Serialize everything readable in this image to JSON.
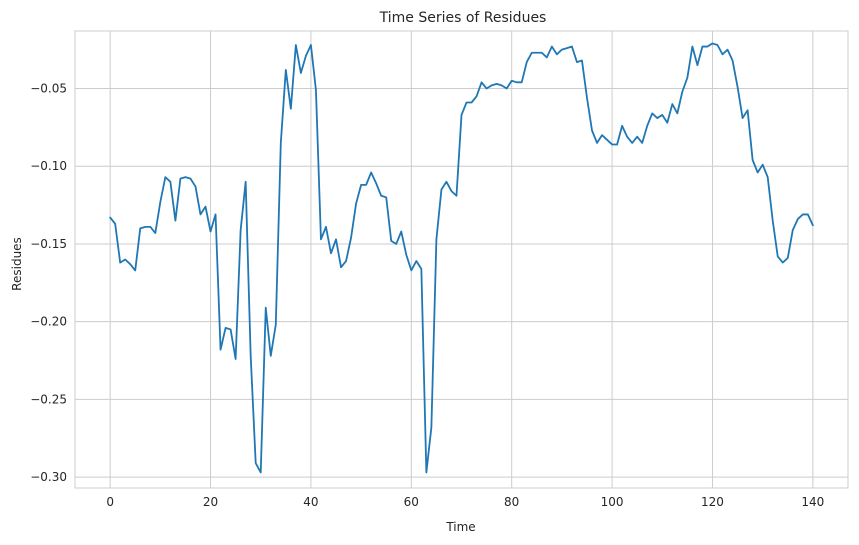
{
  "chart_data": {
    "type": "line",
    "title": "Time Series of Residues",
    "xlabel": "Time",
    "ylabel": "Residues",
    "xlim": [
      -7,
      147
    ],
    "ylim": [
      -0.307,
      -0.013
    ],
    "xticks": [
      0,
      20,
      40,
      60,
      80,
      100,
      120,
      140
    ],
    "yticks": [
      -0.3,
      -0.25,
      -0.2,
      -0.15,
      -0.1,
      -0.05
    ],
    "xtick_labels": [
      "0",
      "20",
      "40",
      "60",
      "80",
      "100",
      "120",
      "140"
    ],
    "ytick_labels": [
      "−0.30",
      "−0.25",
      "−0.20",
      "−0.15",
      "−0.10",
      "−0.05"
    ],
    "grid": true,
    "colors": {
      "line": "#1f77b4",
      "grid": "#cccccc",
      "background": "#ffffff"
    },
    "series": [
      {
        "x": [
          0,
          1,
          2,
          3,
          4,
          5,
          6,
          7,
          8,
          9,
          10,
          11,
          12,
          13,
          14,
          15,
          16,
          17,
          18,
          19,
          20,
          21,
          22,
          23,
          24,
          25,
          26,
          27,
          28,
          29,
          30,
          31,
          32,
          33,
          34,
          35,
          36,
          37,
          38,
          39,
          40,
          41,
          42,
          43,
          44,
          45,
          46,
          47,
          48,
          49,
          50,
          51,
          52,
          53,
          54,
          55,
          56,
          57,
          58,
          59,
          60,
          61,
          62,
          63,
          64,
          65,
          66,
          67,
          68,
          69,
          70,
          71,
          72,
          73,
          74,
          75,
          76,
          77,
          78,
          79,
          80,
          81,
          82,
          83,
          84,
          85,
          86,
          87,
          88,
          89,
          90,
          91,
          92,
          93,
          94,
          95,
          96,
          97,
          98,
          99,
          100,
          101,
          102,
          103,
          104,
          105,
          106,
          107,
          108,
          109,
          110,
          111,
          112,
          113,
          114,
          115,
          116,
          117,
          118,
          119,
          120,
          121,
          122,
          123,
          124,
          125,
          126,
          127,
          128,
          129,
          130,
          131,
          132,
          133,
          134,
          135,
          136,
          137,
          138,
          139,
          140
        ],
        "values": [
          -0.133,
          -0.137,
          -0.162,
          -0.16,
          -0.163,
          -0.167,
          -0.14,
          -0.139,
          -0.139,
          -0.143,
          -0.123,
          -0.107,
          -0.11,
          -0.135,
          -0.108,
          -0.107,
          -0.108,
          -0.113,
          -0.131,
          -0.126,
          -0.142,
          -0.131,
          -0.218,
          -0.204,
          -0.205,
          -0.224,
          -0.141,
          -0.11,
          -0.222,
          -0.291,
          -0.297,
          -0.191,
          -0.222,
          -0.202,
          -0.085,
          -0.038,
          -0.063,
          -0.022,
          -0.04,
          -0.029,
          -0.022,
          -0.051,
          -0.147,
          -0.139,
          -0.156,
          -0.147,
          -0.165,
          -0.161,
          -0.146,
          -0.124,
          -0.112,
          -0.112,
          -0.104,
          -0.111,
          -0.119,
          -0.12,
          -0.148,
          -0.15,
          -0.142,
          -0.157,
          -0.167,
          -0.161,
          -0.166,
          -0.297,
          -0.268,
          -0.147,
          -0.115,
          -0.11,
          -0.116,
          -0.119,
          -0.067,
          -0.059,
          -0.059,
          -0.055,
          -0.046,
          -0.05,
          -0.048,
          -0.047,
          -0.048,
          -0.05,
          -0.045,
          -0.046,
          -0.046,
          -0.033,
          -0.027,
          -0.027,
          -0.027,
          -0.03,
          -0.023,
          -0.028,
          -0.025,
          -0.024,
          -0.023,
          -0.033,
          -0.032,
          -0.056,
          -0.077,
          -0.085,
          -0.08,
          -0.083,
          -0.086,
          -0.086,
          -0.074,
          -0.081,
          -0.085,
          -0.081,
          -0.085,
          -0.074,
          -0.066,
          -0.069,
          -0.067,
          -0.072,
          -0.06,
          -0.066,
          -0.052,
          -0.043,
          -0.023,
          -0.035,
          -0.023,
          -0.023,
          -0.021,
          -0.022,
          -0.028,
          -0.025,
          -0.032,
          -0.049,
          -0.069,
          -0.064,
          -0.096,
          -0.104,
          -0.099,
          -0.107,
          -0.135,
          -0.158,
          -0.162,
          -0.159,
          -0.141,
          -0.134,
          -0.131,
          -0.131,
          -0.138
        ]
      }
    ]
  }
}
